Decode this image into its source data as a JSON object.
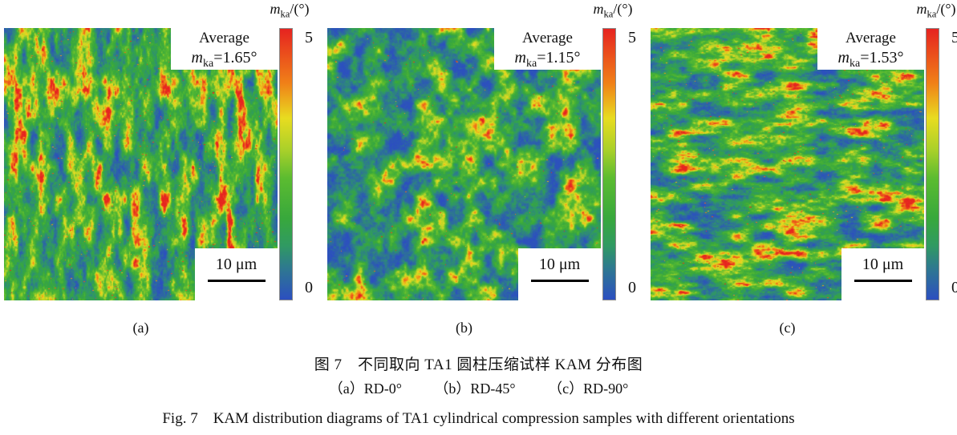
{
  "figure": {
    "colorbar": {
      "symbol": "m",
      "subscript": "ka",
      "unit_suffix": "/(°)",
      "tick_max": "5",
      "tick_min": "0",
      "value_range": [
        0,
        5
      ],
      "stops": [
        {
          "v": 5,
          "color": "#e62320"
        },
        {
          "v": 4.0,
          "color": "#f08018"
        },
        {
          "v": 3.35,
          "color": "#e8dc20"
        },
        {
          "v": 2.75,
          "color": "#a8d02a"
        },
        {
          "v": 2.25,
          "color": "#5cbc30"
        },
        {
          "v": 1.5,
          "color": "#38a83c"
        },
        {
          "v": 1.0,
          "color": "#309a62"
        },
        {
          "v": 0.6,
          "color": "#2e7a8e"
        },
        {
          "v": 0,
          "color": "#2c4fc0"
        }
      ]
    },
    "panels": [
      {
        "panel_label": "(a)",
        "average_title": "Average",
        "m_symbol": "m",
        "m_subscript": "ka",
        "m_value": "=1.65°",
        "average_value": 1.65,
        "scale_label": "10 μm",
        "texture": {
          "pattern": "vertical",
          "seed": 7,
          "bias": 0.13,
          "gain": 1.5,
          "speckle": 0.004
        }
      },
      {
        "panel_label": "(b)",
        "average_title": "Average",
        "m_symbol": "m",
        "m_subscript": "ka",
        "m_value": "=1.15°",
        "average_value": 1.15,
        "scale_label": "10 μm",
        "texture": {
          "pattern": "blobby",
          "seed": 23,
          "bias": 0.21,
          "gain": 1.5,
          "speckle": 0.0015
        }
      },
      {
        "panel_label": "(c)",
        "average_title": "Average",
        "m_symbol": "m",
        "m_subscript": "ka",
        "m_value": "=1.53°",
        "average_value": 1.53,
        "scale_label": "10 μm",
        "texture": {
          "pattern": "horizontal",
          "seed": 41,
          "bias": 0.15,
          "gain": 1.5,
          "speckle": 0.003
        }
      }
    ],
    "captions": {
      "zh_title": "图 7　不同取向 TA1 圆柱压缩试样 KAM 分布图",
      "sub_items": [
        "（a）RD-0°",
        "（b）RD-45°",
        "（c）RD-90°"
      ],
      "en_title": "Fig. 7　KAM distribution diagrams of TA1 cylindrical compression samples with different orientations"
    }
  }
}
